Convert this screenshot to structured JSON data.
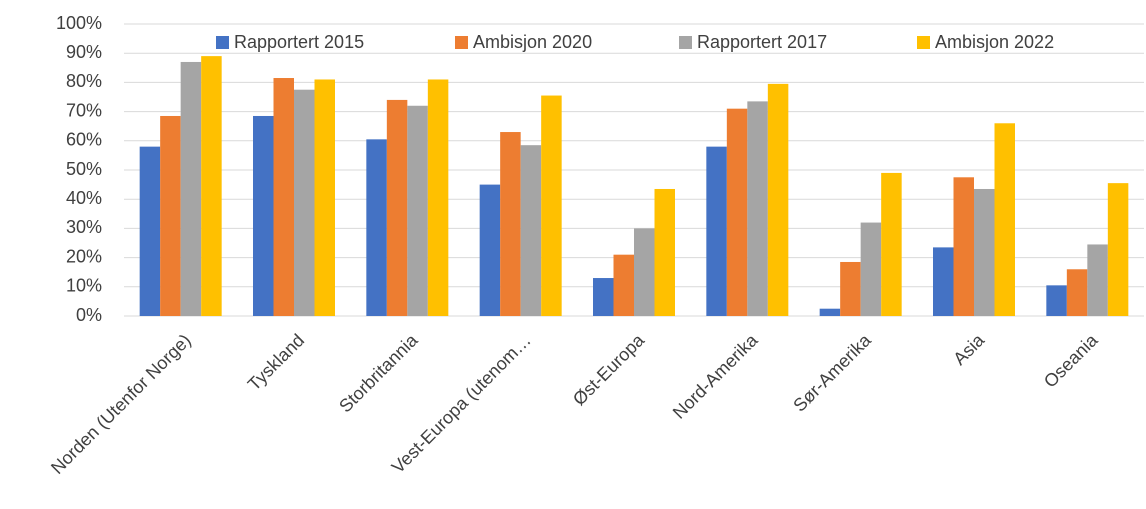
{
  "chart_data": {
    "type": "bar",
    "categories": [
      "Norden (Utenfor Norge)",
      "Tyskland",
      "Storbritannia",
      "Vest-Europa (utenom…",
      "Øst-Europa",
      "Nord-Amerika",
      "Sør-Amerika",
      "Asia",
      "Oseania"
    ],
    "series": [
      {
        "name": "Rapportert 2015",
        "color": "#4472c4",
        "values": [
          58,
          68.5,
          60.5,
          45,
          13,
          58,
          2.5,
          23.5,
          10.5
        ]
      },
      {
        "name": "Ambisjon 2020",
        "color": "#ed7d31",
        "values": [
          68.5,
          81.5,
          74,
          63,
          21,
          71,
          18.5,
          47.5,
          16
        ]
      },
      {
        "name": "Rapportert 2017",
        "color": "#a5a5a5",
        "values": [
          87,
          77.5,
          72,
          58.5,
          30,
          73.5,
          32,
          43.5,
          24.5
        ]
      },
      {
        "name": "Ambisjon 2022",
        "color": "#ffc000",
        "values": [
          89,
          81,
          81,
          75.5,
          43.5,
          79.5,
          49,
          66,
          45.5
        ]
      }
    ],
    "ylim": [
      0,
      100
    ],
    "yticks": [
      {
        "value": 0,
        "label": "0%"
      },
      {
        "value": 10,
        "label": "10%"
      },
      {
        "value": 20,
        "label": "20%"
      },
      {
        "value": 30,
        "label": "30%"
      },
      {
        "value": 40,
        "label": "40%"
      },
      {
        "value": 50,
        "label": "50%"
      },
      {
        "value": 60,
        "label": "60%"
      },
      {
        "value": 70,
        "label": "70%"
      },
      {
        "value": 80,
        "label": "80%"
      },
      {
        "value": 90,
        "label": "90%"
      },
      {
        "value": 100,
        "label": "100%"
      }
    ],
    "grid": true,
    "legend": "top"
  }
}
